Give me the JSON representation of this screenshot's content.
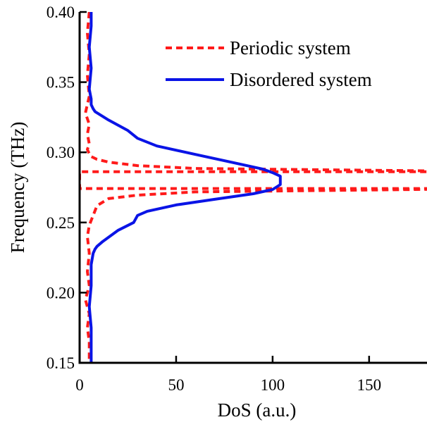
{
  "chart_data": {
    "type": "line",
    "xlabel": "DoS (a.u.)",
    "ylabel": "Frequency (THz)",
    "xlim": [
      0,
      180
    ],
    "ylim": [
      0.15,
      0.4
    ],
    "xticks": [
      0,
      50,
      100,
      150
    ],
    "xtick_labels": [
      "0",
      "50",
      "100",
      "150"
    ],
    "yticks": [
      0.15,
      0.2,
      0.25,
      0.3,
      0.35,
      0.4
    ],
    "ytick_labels": [
      "0.15",
      "0.20",
      "0.25",
      "0.30",
      "0.35",
      "0.40"
    ],
    "grid": false,
    "legend_position": "top-right",
    "series": [
      {
        "name": "Periodic system",
        "color": "#ff1a1a",
        "style": "dashed",
        "x": [
          5,
          4,
          5,
          4,
          5,
          3,
          5,
          4,
          5,
          4,
          5,
          6,
          9,
          15,
          30,
          60,
          180,
          180,
          0,
          0,
          180,
          180,
          60,
          30,
          15,
          9,
          7,
          5,
          4,
          5,
          4,
          5,
          3,
          5,
          4,
          5,
          5
        ],
        "y": [
          0.4,
          0.385,
          0.37,
          0.355,
          0.34,
          0.328,
          0.32,
          0.313,
          0.306,
          0.302,
          0.299,
          0.297,
          0.295,
          0.293,
          0.2905,
          0.2885,
          0.2868,
          0.2862,
          0.2862,
          0.2742,
          0.2742,
          0.2736,
          0.2718,
          0.2695,
          0.267,
          0.262,
          0.255,
          0.248,
          0.24,
          0.228,
          0.215,
          0.205,
          0.195,
          0.185,
          0.175,
          0.165,
          0.15
        ]
      },
      {
        "name": "Disordered system",
        "color": "#0a14e6",
        "style": "solid",
        "x": [
          6,
          6,
          5,
          6,
          5,
          6,
          6,
          7,
          8,
          15,
          25,
          30,
          40,
          60,
          80,
          95,
          100,
          104,
          104,
          100,
          90,
          70,
          50,
          35,
          30,
          28,
          20,
          12,
          9,
          8,
          7,
          6,
          6,
          5,
          6,
          6,
          6
        ],
        "y": [
          0.4,
          0.39,
          0.375,
          0.36,
          0.345,
          0.338,
          0.334,
          0.331,
          0.329,
          0.323,
          0.3155,
          0.31,
          0.3045,
          0.2985,
          0.2925,
          0.288,
          0.2855,
          0.283,
          0.277,
          0.2735,
          0.2705,
          0.2665,
          0.2625,
          0.258,
          0.255,
          0.25,
          0.2445,
          0.2365,
          0.233,
          0.231,
          0.228,
          0.22,
          0.205,
          0.19,
          0.175,
          0.16,
          0.15
        ]
      }
    ]
  }
}
